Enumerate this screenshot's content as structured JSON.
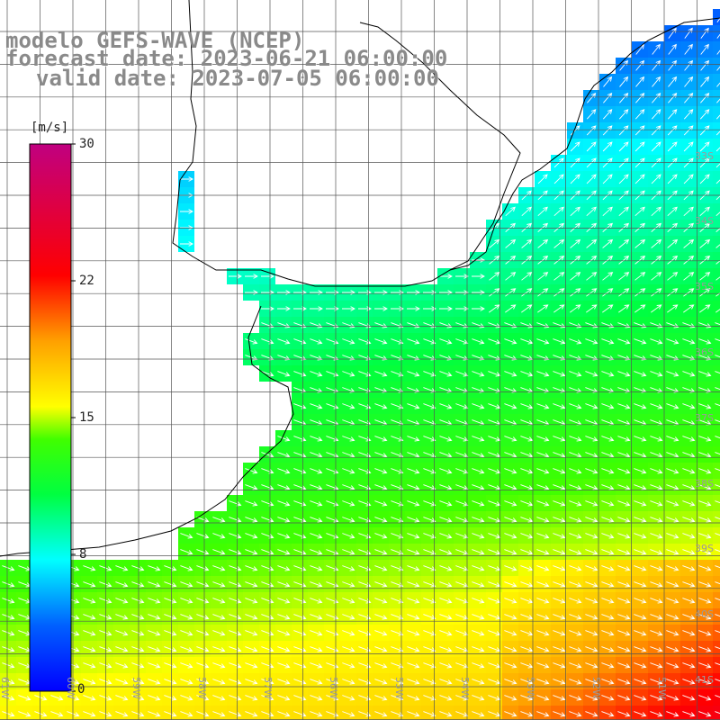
{
  "title": {
    "model": "modelo GEFS-WAVE (NCEP)",
    "forecast": "forecast date: 2023-06-21 06:00:00",
    "valid": "valid date: 2023-07-05 06:00:00"
  },
  "colorbar": {
    "unit": "[m/s]",
    "ticks": [
      "30",
      "22",
      "15",
      "8",
      "0"
    ],
    "colors": [
      "#0000ff",
      "#00a0ff",
      "#00ffff",
      "#00ff00",
      "#aaff00",
      "#ffff00",
      "#ff8000",
      "#ff0000",
      "#c00080"
    ]
  },
  "axes": {
    "lat_labels": [
      "33S",
      "34S",
      "35S",
      "36S",
      "37S",
      "38S",
      "39S",
      "40S",
      "41S"
    ],
    "lon_labels": [
      "61W",
      "60W",
      "59W",
      "58W",
      "57W",
      "56W",
      "55W",
      "54W",
      "53W",
      "52W",
      "51W"
    ]
  },
  "colors": {
    "grid": "#555555",
    "coast": "#000000",
    "arrow": "#ffffff"
  }
}
